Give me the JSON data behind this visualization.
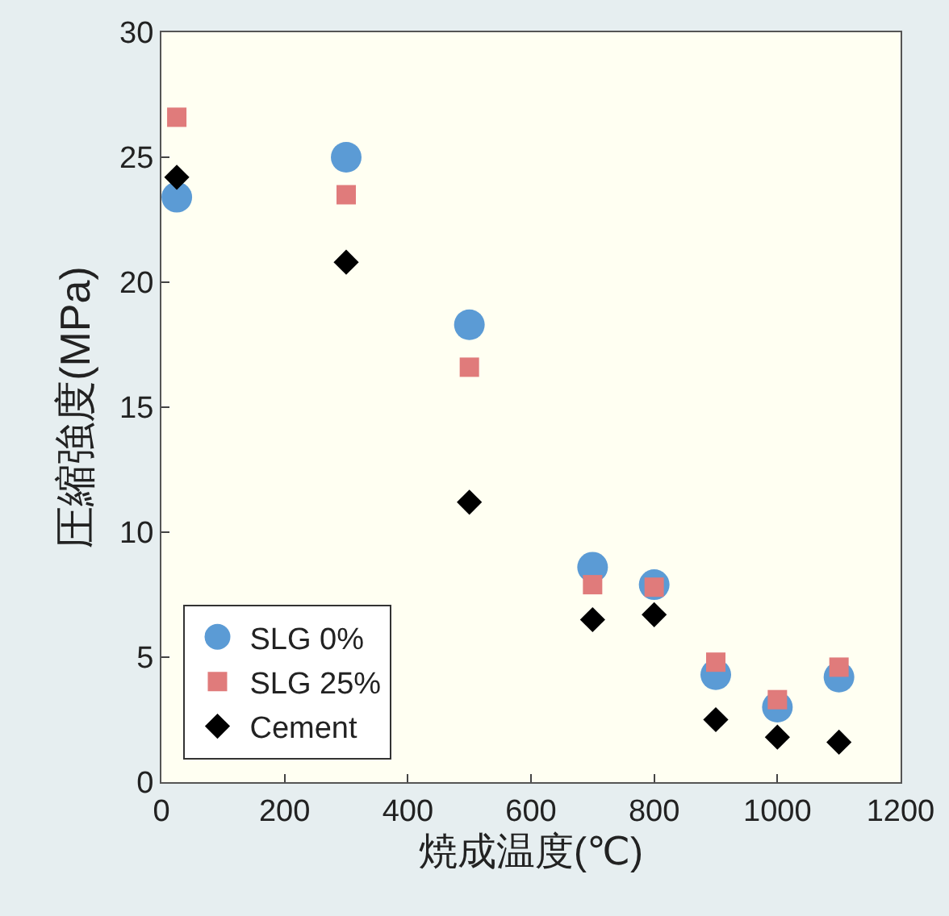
{
  "chart_data": {
    "type": "scatter",
    "xlabel": "焼成温度(℃)",
    "ylabel": "圧縮強度(MPa)",
    "xlim": [
      0,
      1200
    ],
    "xticks": [
      0,
      200,
      400,
      600,
      800,
      1000,
      1200
    ],
    "ylim": [
      0,
      30
    ],
    "yticks": [
      0,
      5,
      10,
      15,
      20,
      25,
      30
    ],
    "grid": false,
    "legend": "bottom left",
    "series": [
      {
        "name": "SLG 0%",
        "color": "#5b9bd5",
        "marker": "circle",
        "x": [
          25,
          300,
          500,
          700,
          800,
          900,
          1000,
          1100
        ],
        "values": [
          23.4,
          25.0,
          18.3,
          8.6,
          7.9,
          4.3,
          3.0,
          4.2
        ]
      },
      {
        "name": "SLG 25%",
        "color": "#e07b7b",
        "marker": "square",
        "x": [
          25,
          300,
          500,
          700,
          800,
          900,
          1000,
          1100
        ],
        "values": [
          26.6,
          23.5,
          16.6,
          7.9,
          7.8,
          4.8,
          3.3,
          4.6
        ]
      },
      {
        "name": "Cement",
        "color": "#000000",
        "marker": "diamond",
        "x": [
          25,
          300,
          500,
          700,
          800,
          900,
          1000,
          1100
        ],
        "values": [
          24.2,
          20.8,
          11.2,
          6.5,
          6.7,
          2.5,
          1.8,
          1.6
        ]
      }
    ]
  }
}
